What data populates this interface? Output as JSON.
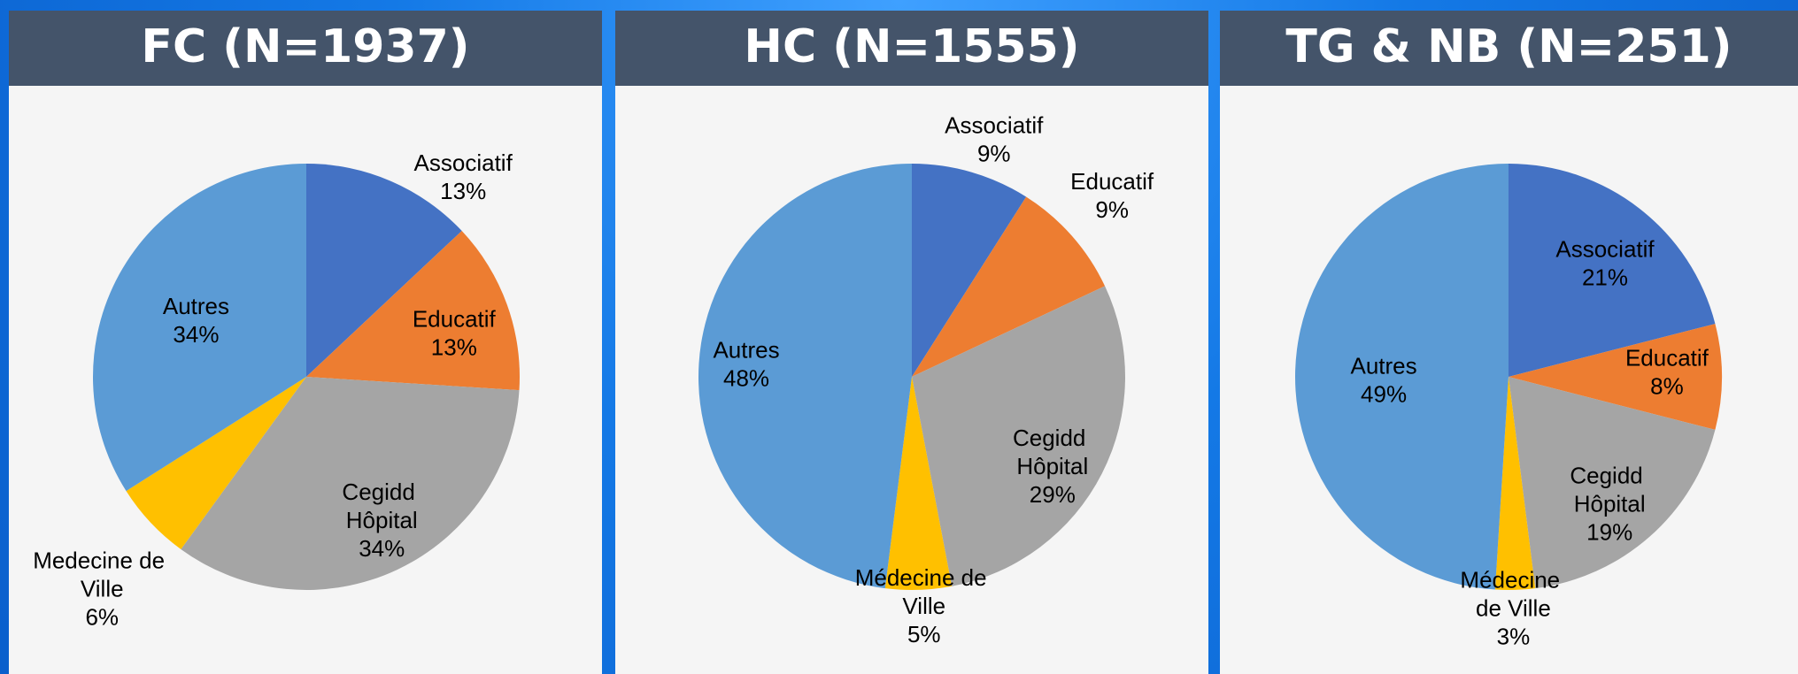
{
  "chart_data": [
    {
      "type": "pie",
      "title": "FC (N=1937)",
      "categories": [
        "Associatif",
        "Educatif",
        "Cegidd Hôpital",
        "Medecine de Ville",
        "Autres"
      ],
      "values": [
        13,
        13,
        34,
        6,
        34
      ],
      "value_labels": [
        "13%",
        "13%",
        "34%",
        "6%",
        "34%"
      ],
      "colors": [
        "#4472c4",
        "#ed7d31",
        "#a5a5a5",
        "#ffc000",
        "#5b9bd5"
      ]
    },
    {
      "type": "pie",
      "title": "HC (N=1555)",
      "categories": [
        "Associatif",
        "Educatif",
        "Cegidd Hôpital",
        "Médecine de Ville",
        "Autres"
      ],
      "values": [
        9,
        9,
        29,
        5,
        48
      ],
      "value_labels": [
        "9%",
        "9%",
        "29%",
        "5%",
        "48%"
      ],
      "colors": [
        "#4472c4",
        "#ed7d31",
        "#a5a5a5",
        "#ffc000",
        "#5b9bd5"
      ]
    },
    {
      "type": "pie",
      "title": "TG & NB (N=251)",
      "categories": [
        "Associatif",
        "Educatif",
        "Cegidd Hôpital",
        "Médecine de Ville",
        "Autres"
      ],
      "values": [
        21,
        8,
        19,
        3,
        49
      ],
      "value_labels": [
        "21%",
        "8%",
        "19%",
        "3%",
        "49%"
      ],
      "colors": [
        "#4472c4",
        "#ed7d31",
        "#a5a5a5",
        "#ffc000",
        "#5b9bd5"
      ]
    }
  ]
}
